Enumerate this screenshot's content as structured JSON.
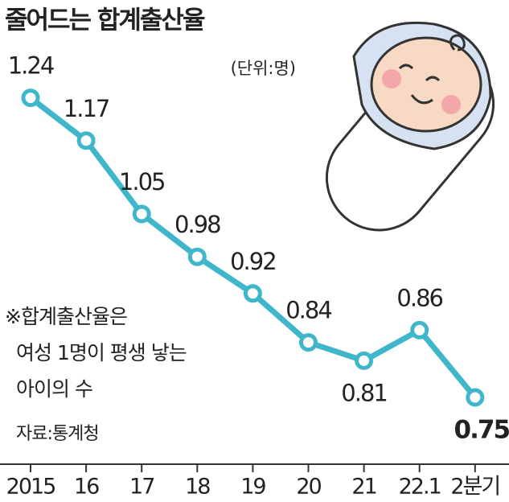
{
  "chart_data": {
    "type": "line",
    "title": "줄어드는 합계출산율",
    "unit_note": "(단위:명)",
    "annotation": [
      "※합계출산율은",
      "여성 1명이 평생 낳는",
      "아이의 수"
    ],
    "source": "자료:통계청",
    "categories": [
      "2015",
      "16",
      "17",
      "18",
      "19",
      "20",
      "21",
      "22.1",
      "2분기"
    ],
    "values": [
      1.24,
      1.17,
      1.05,
      0.98,
      0.92,
      0.84,
      0.81,
      0.86,
      0.75
    ],
    "color": "#40b6cb",
    "ylim": [
      0.7,
      1.3
    ]
  }
}
